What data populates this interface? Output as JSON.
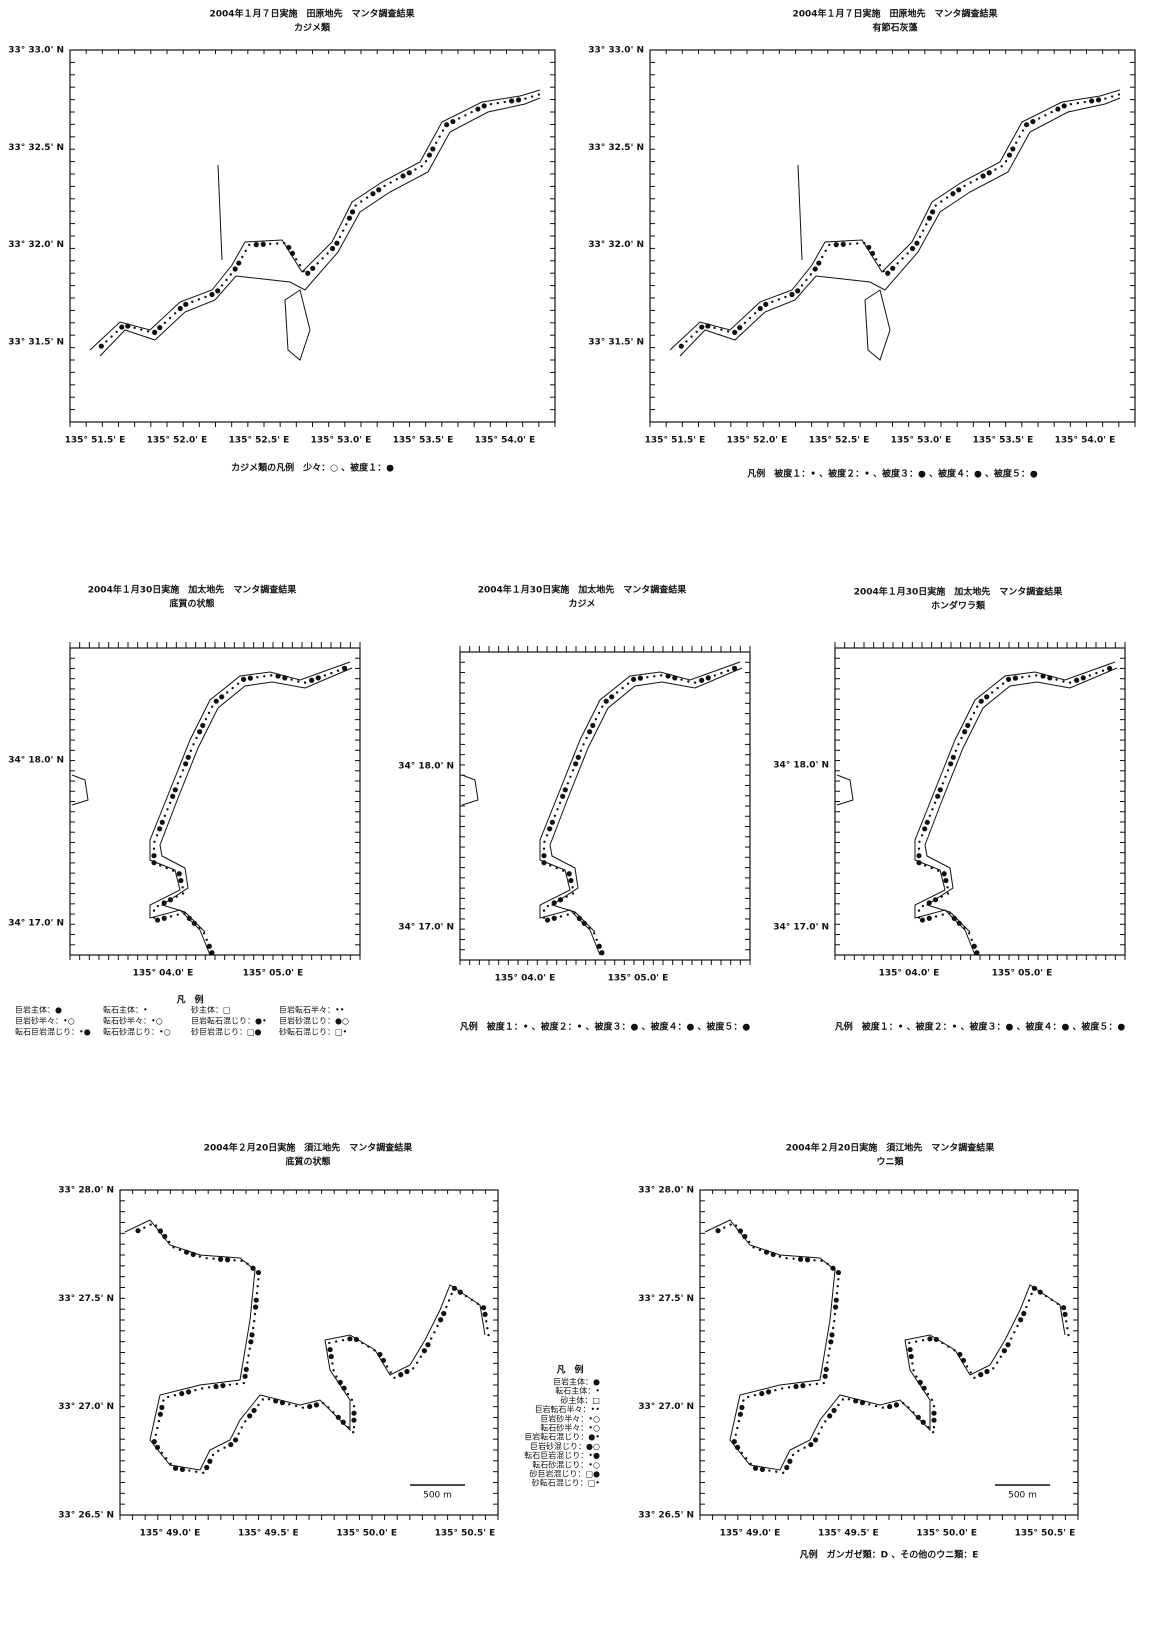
{
  "maps": [
    {
      "title": "2004年１月７日実施　田原地先　マンタ調査結果",
      "subtitle": "カジメ類",
      "lat_labels": [
        "33° 33.0' N",
        "33° 32.5' N",
        "33° 32.0' N",
        "33° 31.5' N"
      ],
      "lon_labels": [
        "135° 51.5' E",
        "135° 52.0' E",
        "135° 52.5' E",
        "135° 53.0' E",
        "135° 53.5' E",
        "135° 54.0' E"
      ],
      "legend": [
        "カジメ類の凡例　少々：○ 、被度１：●"
      ]
    },
    {
      "title": "2004年１月７日実施　田原地先　マンタ調査結果",
      "subtitle": "有節石灰藻",
      "lat_labels": [
        "33° 33.0' N",
        "33° 32.5' N",
        "33° 32.0' N",
        "33° 31.5' N"
      ],
      "lon_labels": [
        "135° 51.5' E",
        "135° 52.0' E",
        "135° 52.5' E",
        "135° 53.0' E",
        "135° 53.5' E",
        "135° 54.0' E"
      ],
      "legend": [
        "凡例　被度１：• 、被度２：• 、被度３：● 、被度４：● 、被度５：●"
      ]
    },
    {
      "title": "2004年１月30日実施　加太地先　マンタ調査結果",
      "subtitle": "底質の状態",
      "lat_labels": [
        "34° 18.0' N",
        "34° 17.0' N"
      ],
      "lon_labels": [
        "135° 04.0' E",
        "135° 05.0' E"
      ],
      "legend_title": "凡　例",
      "legend": [
        "巨岩主体：●",
        "転石主体：•",
        "砂主体：□",
        "巨岩転石半々：••",
        "巨岩砂半々：•○",
        "転石砂半々：•○",
        "巨岩転石混じり：●•",
        "巨岩砂混じり：●○",
        "転石巨岩混じり：•●",
        "転石砂混じり：•○",
        "砂巨岩混じり：□●",
        "砂転石混じり：□•"
      ]
    },
    {
      "title": "2004年１月30日実施　加太地先　マンタ調査結果",
      "subtitle": "カジメ",
      "lat_labels": [
        "34° 18.0' N",
        "34° 17.0' N"
      ],
      "lon_labels": [
        "135° 04.0' E",
        "135° 05.0' E"
      ],
      "legend": [
        "凡例　被度１：• 、被度２：• 、被度３：● 、被度４：● 、被度５：●"
      ]
    },
    {
      "title": "2004年１月30日実施　加太地先　マンタ調査結果",
      "subtitle": "ホンダワラ類",
      "lat_labels": [
        "34° 18.0' N",
        "34° 17.0' N"
      ],
      "lon_labels": [
        "135° 04.0' E",
        "135° 05.0' E"
      ],
      "legend": [
        "凡例　被度１：• 、被度２：• 、被度３：● 、被度４：● 、被度５：●"
      ]
    },
    {
      "title": "2004年２月20日実施　須江地先　マンタ調査結果",
      "subtitle": "底質の状態",
      "lat_labels": [
        "33° 28.0' N",
        "33° 27.5' N",
        "33° 27.0' N",
        "33° 26.5' N"
      ],
      "lon_labels": [
        "135° 49.0' E",
        "135° 49.5' E",
        "135° 50.0' E",
        "135° 50.5' E"
      ],
      "scale": "500 m",
      "legend_title": "凡　例",
      "legend": [
        "巨岩主体：●",
        "転石主体：•",
        "砂主体：□",
        "巨岩転石半々：••",
        "巨岩砂半々：•○",
        "転石砂半々：•○",
        "巨岩転石混じり：●•",
        "巨岩砂混じり：●○",
        "転石巨岩混じり：•●",
        "転石砂混じり：•○",
        "砂巨岩混じり：□●",
        "砂転石混じり：□•"
      ]
    },
    {
      "title": "2004年２月20日実施　須江地先　マンタ調査結果",
      "subtitle": "ウニ類",
      "lat_labels": [
        "33° 28.0' N",
        "33° 27.5' N",
        "33° 27.0' N",
        "33° 26.5' N"
      ],
      "lon_labels": [
        "135° 49.0' E",
        "135° 49.5' E",
        "135° 50.0' E",
        "135° 50.5' E"
      ],
      "scale": "500 m",
      "legend": [
        "凡例　ガンガゼ類：D 、その他のウニ類：E"
      ]
    }
  ]
}
